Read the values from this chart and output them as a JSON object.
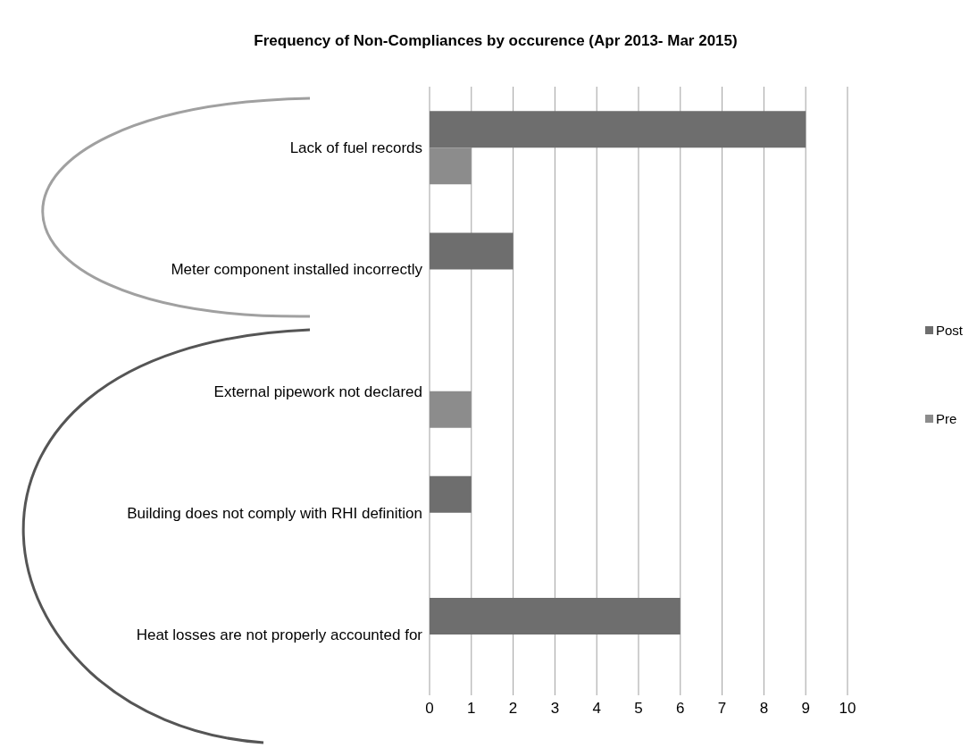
{
  "chart_data": {
    "type": "bar",
    "orientation": "horizontal",
    "title": "Frequency of Non-Compliances by occurence (Apr 2013- Mar 2015)",
    "categories": [
      "Lack of fuel records",
      "Meter component installed incorrectly",
      "External pipework not declared",
      "Building does not comply with RHI definition",
      "Heat losses are not properly accounted for"
    ],
    "series": [
      {
        "name": "Post",
        "color": "#6e6e6e",
        "values": [
          9,
          2,
          null,
          1,
          6
        ]
      },
      {
        "name": "Pre",
        "color": "#8c8c8c",
        "values": [
          1,
          null,
          1,
          null,
          null
        ]
      }
    ],
    "xlim": [
      0,
      10
    ],
    "xticks": [
      0,
      1,
      2,
      3,
      4,
      5,
      6,
      7,
      8,
      9,
      10
    ],
    "grid": "x",
    "legend": "right"
  }
}
